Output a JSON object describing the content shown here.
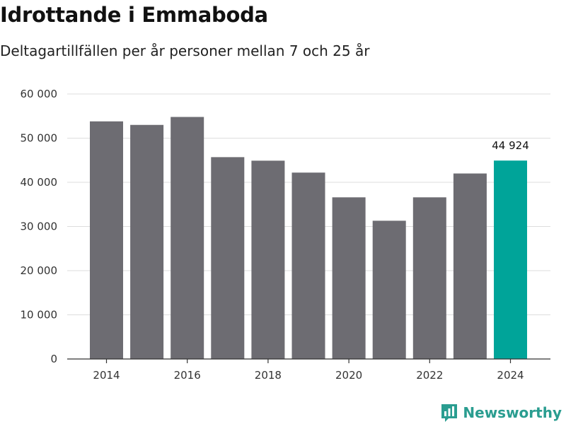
{
  "title": "Idrottande i Emmaboda",
  "subtitle": "Deltagartillfällen per år personer mellan 7 och 25 år",
  "brand": "Newsworthy",
  "colors": {
    "bar": "#6d6c72",
    "highlight": "#00a499",
    "grid": "#dddddd",
    "axis": "#333333",
    "brand": "#2a9d90"
  },
  "chart_data": {
    "type": "bar",
    "title": "Idrottande i Emmaboda",
    "subtitle": "Deltagartillfällen per år personer mellan 7 och 25 år",
    "xlabel": "",
    "ylabel": "",
    "categories": [
      "2014",
      "2015",
      "2016",
      "2017",
      "2018",
      "2019",
      "2020",
      "2021",
      "2022",
      "2023",
      "2024"
    ],
    "values": [
      53800,
      53000,
      54800,
      45700,
      44900,
      42200,
      36600,
      31300,
      36600,
      42000,
      44924
    ],
    "highlight_index": 10,
    "ylim": [
      0,
      60000
    ],
    "yticks": [
      0,
      10000,
      20000,
      30000,
      40000,
      50000,
      60000
    ],
    "ytick_labels": [
      "0",
      "10 000",
      "20 000",
      "30 000",
      "40 000",
      "50 000",
      "60 000"
    ],
    "xtick_labels": [
      "2014",
      "2016",
      "2018",
      "2020",
      "2022",
      "2024"
    ],
    "data_labels": [
      {
        "index": 10,
        "text": "44 924"
      }
    ],
    "grid": true
  }
}
